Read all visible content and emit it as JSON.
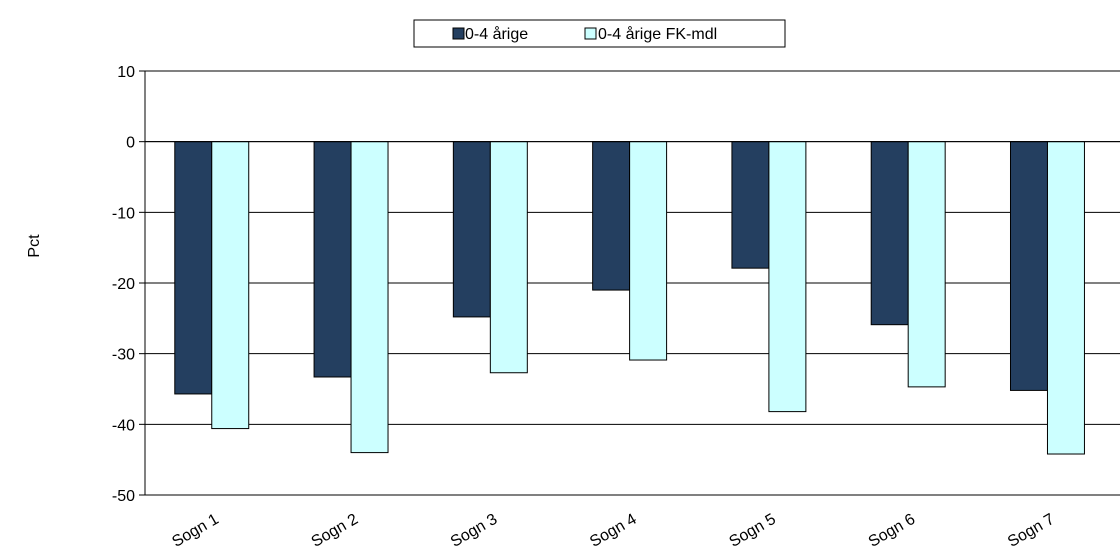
{
  "chart_data": {
    "type": "bar",
    "categories": [
      "Sogn 1",
      "Sogn 2",
      "Sogn 3",
      "Sogn 4",
      "Sogn 5",
      "Sogn 6",
      "Sogn 7"
    ],
    "series": [
      {
        "name": "0-4 årige",
        "color": "#243f60",
        "values": [
          -35.7,
          -33.3,
          -24.8,
          -21.0,
          -17.9,
          -25.9,
          -35.2
        ]
      },
      {
        "name": "0-4 årige FK-mdl",
        "color": "#ccffff",
        "values": [
          -40.6,
          -44.0,
          -32.7,
          -30.9,
          -38.2,
          -34.7,
          -44.2
        ]
      }
    ],
    "ylabel": "Pct",
    "xlabel": "",
    "title": "",
    "ylim": [
      -50,
      10
    ],
    "yticks": [
      10,
      0,
      -10,
      -20,
      -30,
      -40,
      -50
    ],
    "grid": true,
    "legend_position": "top-center"
  }
}
